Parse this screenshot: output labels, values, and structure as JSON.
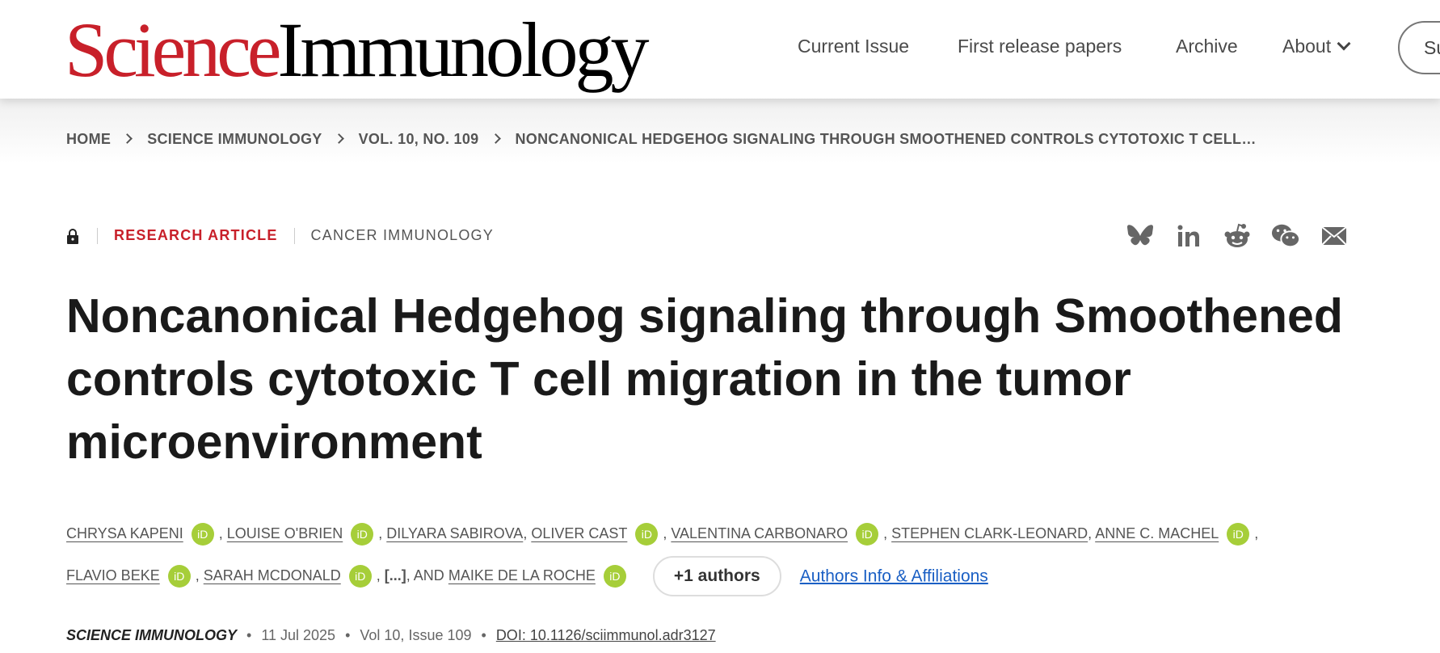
{
  "header": {
    "logo_red": "Science",
    "logo_black": "Immunology",
    "nav": [
      "Current Issue",
      "First release papers",
      "Archive",
      "About"
    ],
    "subscribe_label": "Su"
  },
  "breadcrumb": [
    "HOME",
    "SCIENCE IMMUNOLOGY",
    "VOL. 10, NO. 109",
    "NONCANONICAL HEDGEHOG SIGNALING THROUGH SMOOTHENED CONTROLS CYTOTOXIC T CELL…"
  ],
  "tags": {
    "type": "RESEARCH ARTICLE",
    "category": "CANCER IMMUNOLOGY"
  },
  "social": [
    "bluesky-icon",
    "linkedin-icon",
    "reddit-icon",
    "wechat-icon",
    "email-icon"
  ],
  "title": "Noncanonical Hedgehog signaling through Smoothened controls cytotoxic T cell migration in the tumor microenvironment",
  "authors": [
    "CHRYSA KAPENI",
    "LOUISE O'BRIEN",
    "DILYARA SABIROVA",
    "OLIVER CAST",
    "VALENTINA CARBONARO",
    "STEPHEN CLARK-LEONARD",
    "ANNE C. MACHEL",
    "FLAVIO BEKE",
    "SARAH MCDONALD",
    "MAIKE DE LA ROCHE"
  ],
  "orcid_label": "iD",
  "ellipsis": "[...]",
  "and_label": "AND",
  "more_authors": "+1 authors",
  "affiliations_link": "Authors Info & Affiliations",
  "meta": {
    "journal": "SCIENCE IMMUNOLOGY",
    "date": "11 Jul 2025",
    "issue": "Vol 10, Issue 109",
    "doi": "DOI: 10.1126/sciimmunol.adr3127"
  },
  "colors": {
    "brand_red": "#c8202a",
    "orcid_green": "#a6ce39",
    "link_blue": "#1a5fc4"
  }
}
